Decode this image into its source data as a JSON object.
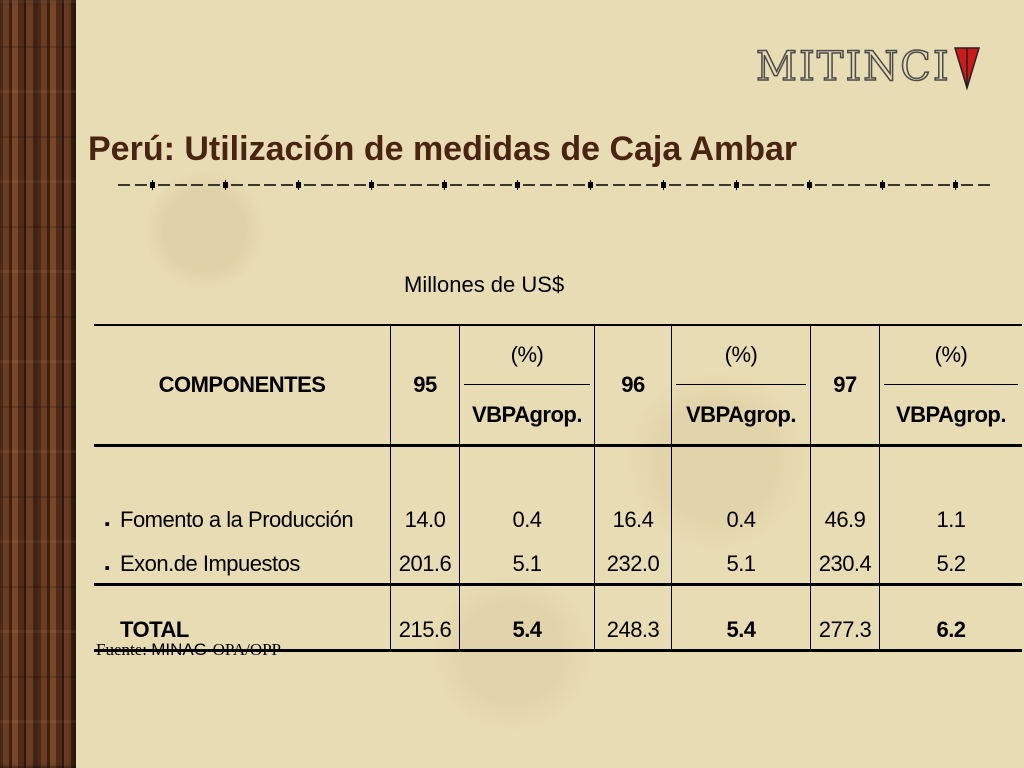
{
  "logo": {
    "text": "MITINCI",
    "flag_color": "#cc1a1a"
  },
  "title": "Perú: Utilización de medidas de Caja Ambar",
  "subtitle": "Millones de US$",
  "table": {
    "headers": {
      "componentes": "COMPONENTES",
      "y95": "95",
      "y96": "96",
      "y97": "97",
      "pct_top": "(%)",
      "pct_bottom": "VBPAgrop."
    },
    "rows": [
      {
        "bullet": ".",
        "label": "Fomento a la Producción",
        "v95": "14.0",
        "p95": "0.4",
        "v96": "16.4",
        "p96": "0.4",
        "v97": "46.9",
        "p97": "1.1"
      },
      {
        "bullet": ".",
        "label": "Exon.de Impuestos",
        "v95": "201.6",
        "p95": "5.1",
        "v96": "232.0",
        "p96": "5.1",
        "v97": "230.4",
        "p97": "5.2"
      }
    ],
    "total": {
      "label": "TOTAL",
      "v95": "215.6",
      "p95": "5.4",
      "v96": "248.3",
      "p96": "5.4",
      "v97": "277.3",
      "p97": "6.2"
    }
  },
  "source": {
    "prefix": "Fuente: ",
    "org": "MINAG",
    "rest": "-OPA/OPP"
  }
}
